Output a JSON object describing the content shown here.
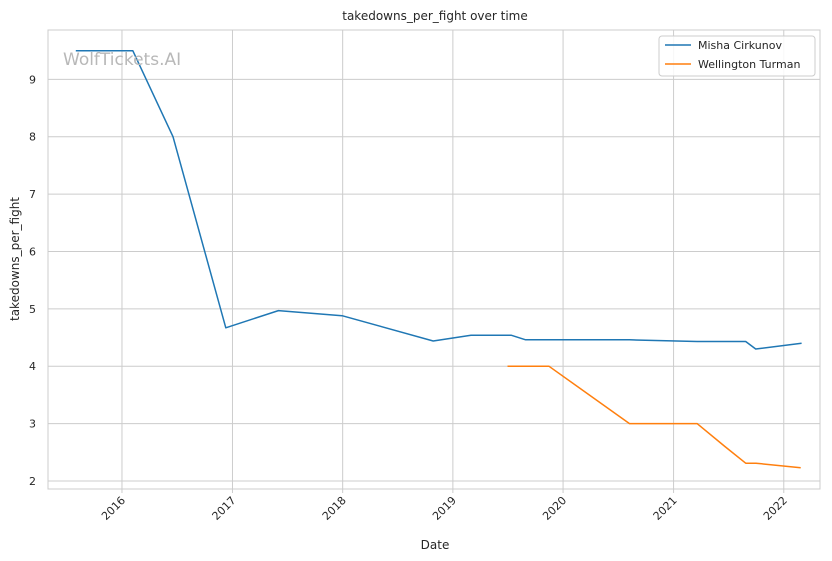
{
  "watermark": "WolfTickets.AI",
  "chart_data": {
    "type": "line",
    "title": "takedowns_per_fight over time",
    "xlabel": "Date",
    "ylabel": "takedowns_per_fight",
    "x_type": "date",
    "xlim": [
      "2015-05-01",
      "2022-05-01"
    ],
    "ylim": [
      1.86,
      9.86
    ],
    "x_ticks": [
      {
        "date": "2016-01-01",
        "label": "2016"
      },
      {
        "date": "2017-01-01",
        "label": "2017"
      },
      {
        "date": "2018-01-01",
        "label": "2018"
      },
      {
        "date": "2019-01-01",
        "label": "2019"
      },
      {
        "date": "2020-01-01",
        "label": "2020"
      },
      {
        "date": "2021-01-01",
        "label": "2021"
      },
      {
        "date": "2022-01-01",
        "label": "2022"
      }
    ],
    "y_ticks": [
      2,
      3,
      4,
      5,
      6,
      7,
      8,
      9
    ],
    "grid": true,
    "legend_position": "top-right",
    "series": [
      {
        "name": "Misha Cirkunov",
        "color": "#1f77b4",
        "points": [
          [
            "2015-08-01",
            9.5
          ],
          [
            "2016-02-06",
            9.5
          ],
          [
            "2016-06-18",
            8.0
          ],
          [
            "2016-12-10",
            4.67
          ],
          [
            "2017-06-02",
            4.97
          ],
          [
            "2017-12-30",
            4.88
          ],
          [
            "2018-10-28",
            4.44
          ],
          [
            "2019-03-02",
            4.54
          ],
          [
            "2019-07-13",
            4.54
          ],
          [
            "2019-08-30",
            4.46
          ],
          [
            "2020-08-08",
            4.46
          ],
          [
            "2021-03-20",
            4.43
          ],
          [
            "2021-08-28",
            4.43
          ],
          [
            "2021-09-30",
            4.3
          ],
          [
            "2022-03-01",
            4.4
          ]
        ]
      },
      {
        "name": "Wellington Turman",
        "color": "#ff7f0e",
        "points": [
          [
            "2019-07-01",
            4.0
          ],
          [
            "2019-11-15",
            4.0
          ],
          [
            "2020-08-08",
            3.0
          ],
          [
            "2021-03-20",
            3.0
          ],
          [
            "2021-06-20",
            2.6
          ],
          [
            "2021-08-28",
            2.31
          ],
          [
            "2021-10-01",
            2.31
          ],
          [
            "2022-02-26",
            2.23
          ]
        ]
      }
    ]
  }
}
